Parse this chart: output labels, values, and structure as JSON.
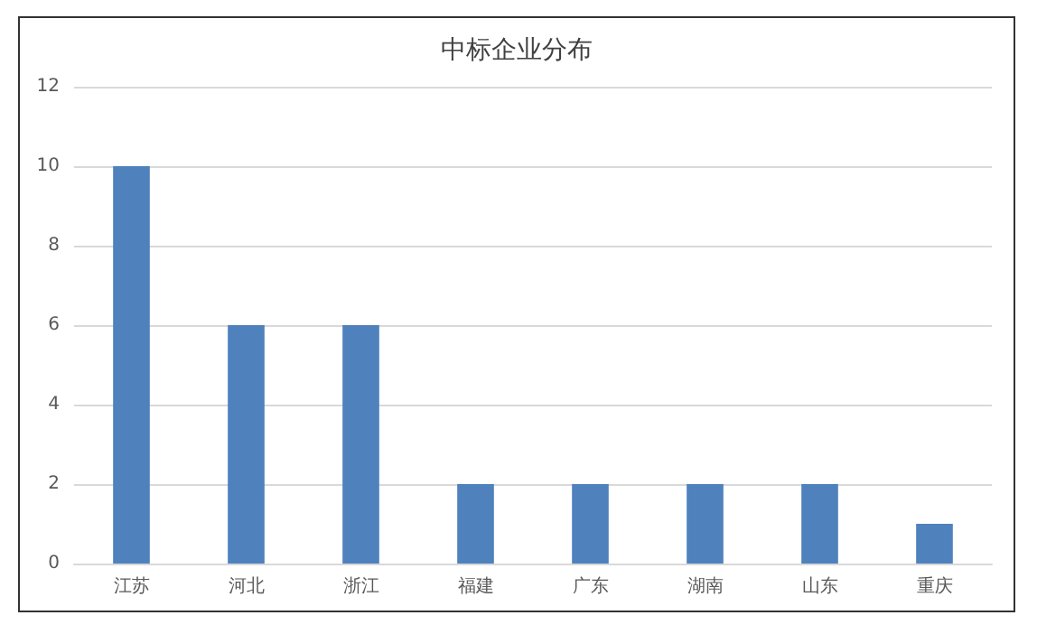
{
  "chart_data": {
    "type": "bar",
    "title": "中标企业分布",
    "categories": [
      "江苏",
      "河北",
      "浙江",
      "福建",
      "广东",
      "湖南",
      "山东",
      "重庆"
    ],
    "values": [
      10,
      6,
      6,
      2,
      2,
      2,
      2,
      1
    ],
    "color": "#4f81bd",
    "ylim": [
      0,
      12
    ],
    "yticks": [
      0,
      2,
      4,
      6,
      8,
      10,
      12
    ],
    "grid": "y"
  }
}
